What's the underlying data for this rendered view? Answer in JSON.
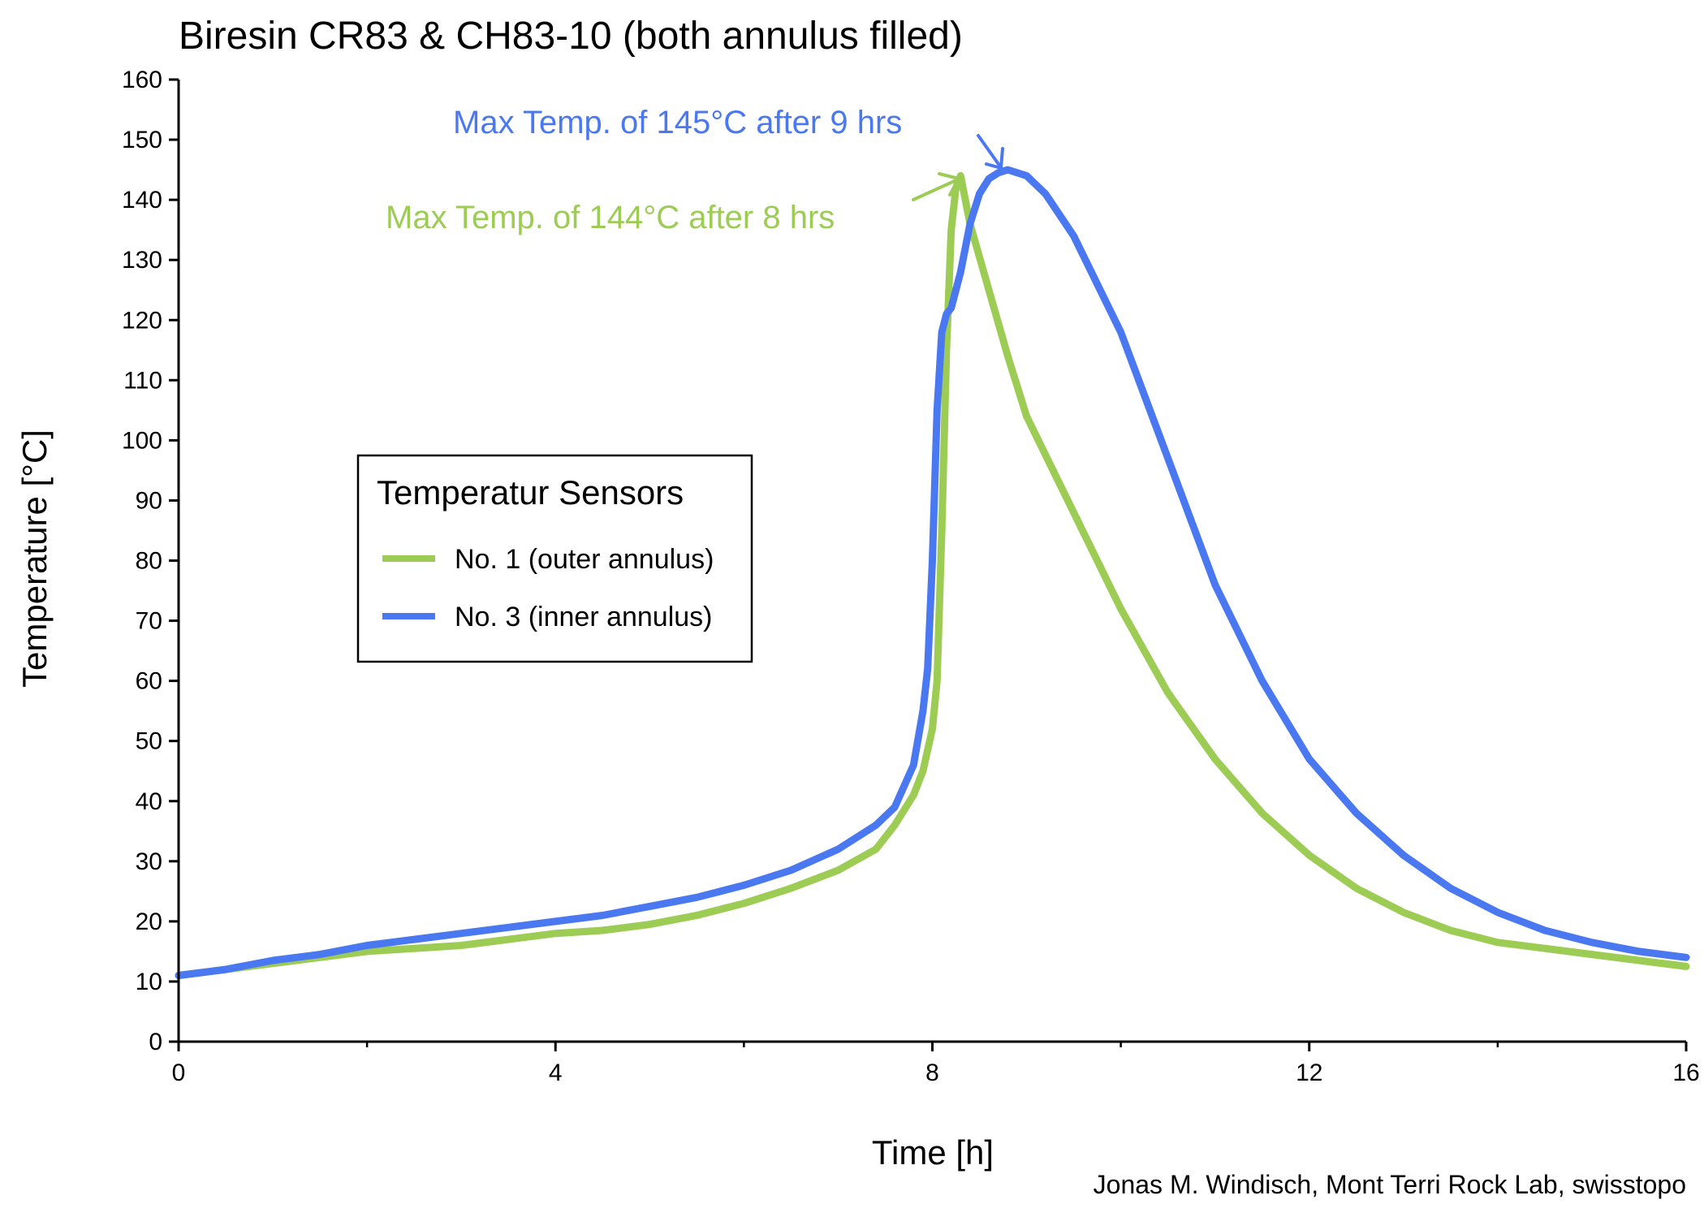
{
  "chart_data": {
    "type": "line",
    "title": "Biresin CR83 & CH83-10 (both annulus filled)",
    "xlabel": "Time [h]",
    "ylabel": "Temperature [°C]",
    "xlim": [
      0,
      16
    ],
    "ylim": [
      0,
      160
    ],
    "x_ticks": [
      0,
      4,
      8,
      12,
      16
    ],
    "x_minor_ticks": [
      2,
      6,
      10,
      14
    ],
    "y_ticks": [
      0,
      10,
      20,
      30,
      40,
      50,
      60,
      70,
      80,
      90,
      100,
      110,
      120,
      130,
      140,
      150,
      160
    ],
    "grid": false,
    "legend": {
      "title": "Temperatur Sensors",
      "placement": "center-left"
    },
    "credit": "Jonas M. Windisch, Mont Terri Rock Lab, swisstopo",
    "series": [
      {
        "name": "No. 1 (outer annulus)",
        "color": "#9dcc55",
        "x": [
          0,
          0.5,
          1,
          1.5,
          2,
          2.5,
          3,
          3.5,
          4,
          4.5,
          5,
          5.5,
          6,
          6.5,
          7,
          7.4,
          7.6,
          7.8,
          7.9,
          8.0,
          8.05,
          8.1,
          8.15,
          8.2,
          8.25,
          8.3,
          8.4,
          8.6,
          8.8,
          9.0,
          9.5,
          10,
          10.5,
          11,
          11.5,
          12,
          12.5,
          13,
          13.5,
          14,
          14.5,
          15,
          15.5,
          16
        ],
        "y": [
          11,
          12,
          13,
          14,
          15,
          15.5,
          16,
          17,
          18,
          18.5,
          19.5,
          21,
          23,
          25.5,
          28.5,
          32,
          36,
          41,
          45,
          52,
          60,
          85,
          115,
          135,
          142,
          144,
          136,
          125,
          114,
          104,
          88,
          72,
          58,
          47,
          38,
          31,
          25.5,
          21.5,
          18.5,
          16.5,
          15.5,
          14.5,
          13.5,
          12.5
        ]
      },
      {
        "name": "No. 3 (inner annulus)",
        "color": "#4a78f0",
        "x": [
          0,
          0.5,
          1,
          1.5,
          2,
          2.5,
          3,
          3.5,
          4,
          4.5,
          5,
          5.5,
          6,
          6.5,
          7,
          7.4,
          7.6,
          7.8,
          7.9,
          7.95,
          8.0,
          8.05,
          8.1,
          8.15,
          8.2,
          8.3,
          8.4,
          8.5,
          8.6,
          8.7,
          8.8,
          9.0,
          9.2,
          9.5,
          10,
          10.5,
          11,
          11.5,
          12,
          12.5,
          13,
          13.5,
          14,
          14.5,
          15,
          15.5,
          16
        ],
        "y": [
          11,
          12,
          13.5,
          14.5,
          16,
          17,
          18,
          19,
          20,
          21,
          22.5,
          24,
          26,
          28.5,
          32,
          36,
          39,
          46,
          55,
          62,
          80,
          105,
          118,
          121,
          122,
          128,
          136,
          141,
          143.5,
          144.5,
          145,
          144,
          141,
          134,
          118,
          97,
          76,
          60,
          47,
          38,
          31,
          25.5,
          21.5,
          18.5,
          16.5,
          15,
          14
        ]
      }
    ],
    "annotations": [
      {
        "text": "Max Temp. of 145°C after 9 hrs",
        "series": "No. 3 (inner annulus)",
        "color": "#4a78f0",
        "point": [
          8.8,
          145
        ]
      },
      {
        "text": "Max Temp. of 144°C after 8 hrs",
        "series": "No. 1 (outer annulus)",
        "color": "#9dcc55",
        "point": [
          8.3,
          144
        ]
      }
    ]
  }
}
